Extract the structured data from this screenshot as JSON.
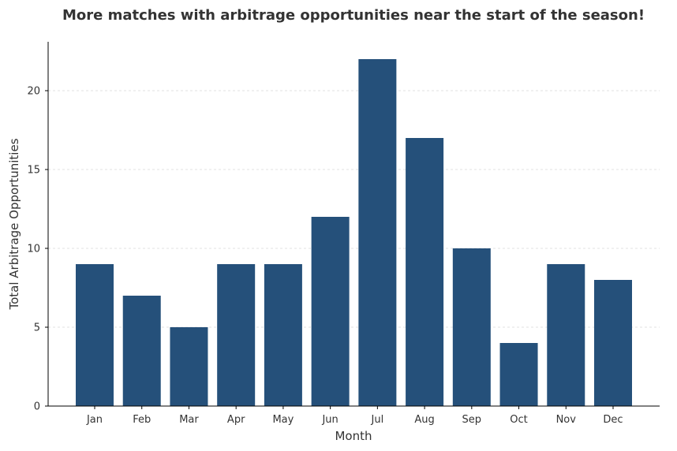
{
  "chart_data": {
    "type": "bar",
    "title": "More matches with arbitrage opportunities near the start of the season!",
    "xlabel": "Month",
    "ylabel": "Total Arbitrage Opportunities",
    "categories": [
      "Jan",
      "Feb",
      "Mar",
      "Apr",
      "May",
      "Jun",
      "Jul",
      "Aug",
      "Sep",
      "Oct",
      "Nov",
      "Dec"
    ],
    "values": [
      9,
      7,
      5,
      9,
      9,
      12,
      22,
      17,
      10,
      4,
      9,
      8
    ],
    "ylim": [
      0,
      23.1
    ],
    "yticks": [
      0,
      5,
      10,
      15,
      20
    ],
    "grid": "horizontal-dashed",
    "bar_color": "#25507a"
  }
}
